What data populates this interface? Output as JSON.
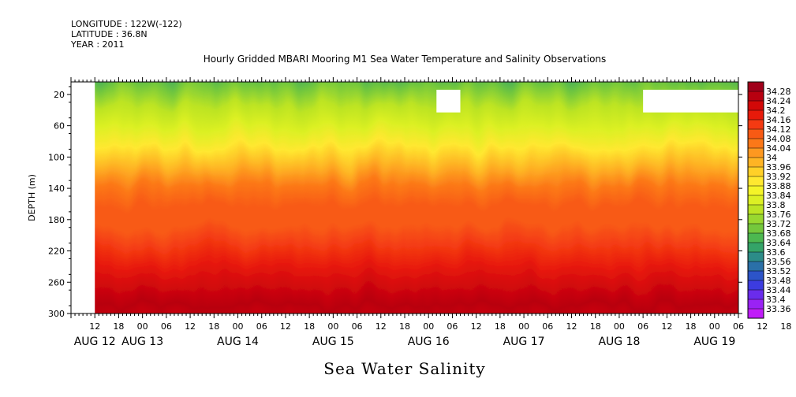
{
  "header": {
    "longitude": "LONGITUDE : 122W(-122)",
    "latitude": "LATITUDE : 36.8N",
    "year": "YEAR : 2011"
  },
  "chart_data": {
    "type": "heatmap",
    "title": "Hourly Gridded MBARI Mooring M1 Sea Water Temperature and Salinity Observations",
    "xlabel": "Sea Water Salinity",
    "ylabel": "DEPTH (m)",
    "y_ticks": [
      20,
      60,
      100,
      140,
      180,
      220,
      260,
      300
    ],
    "y_range": [
      4,
      300
    ],
    "y_inverted": true,
    "x_hour_ticks": [
      "12",
      "18",
      "00",
      "06",
      "12",
      "18",
      "00",
      "06",
      "12",
      "18",
      "00",
      "06",
      "12",
      "18",
      "00",
      "06",
      "12",
      "18",
      "00",
      "06",
      "12",
      "18",
      "00",
      "06",
      "12",
      "18",
      "00",
      "06",
      "12",
      "18",
      "00",
      "06"
    ],
    "x_day_labels": [
      "AUG 12",
      "AUG 13",
      "AUG 14",
      "AUG 15",
      "AUG 16",
      "AUG 17",
      "AUG 18",
      "AUG 19"
    ],
    "x_range_hours": [
      6,
      174
    ],
    "colorbar_labels": [
      "34.28",
      "34.24",
      "34.2",
      "34.16",
      "34.12",
      "34.08",
      "34.04",
      "34",
      "33.96",
      "33.92",
      "33.88",
      "33.84",
      "33.8",
      "33.76",
      "33.72",
      "33.68",
      "33.64",
      "33.6",
      "33.56",
      "33.52",
      "33.48",
      "33.44",
      "33.4",
      "33.36"
    ],
    "colorbar_colors": [
      "#a0001a",
      "#b80010",
      "#d20808",
      "#e81a0a",
      "#f43a12",
      "#f85a14",
      "#fc7818",
      "#fd9820",
      "#feb424",
      "#ffd028",
      "#ffe830",
      "#f4f428",
      "#dcf024",
      "#bce424",
      "#98d830",
      "#74c83c",
      "#4cb850",
      "#34a468",
      "#2c8c88",
      "#2a70a8",
      "#2c54c8",
      "#3c3ce0",
      "#6a2cec",
      "#9a22f4",
      "#c01cf8"
    ],
    "salinity_profile": [
      {
        "depth": 4,
        "value": 33.55
      },
      {
        "depth": 20,
        "value": 33.62
      },
      {
        "depth": 40,
        "value": 33.68
      },
      {
        "depth": 60,
        "value": 33.76
      },
      {
        "depth": 80,
        "value": 33.82
      },
      {
        "depth": 100,
        "value": 33.9
      },
      {
        "depth": 120,
        "value": 33.98
      },
      {
        "depth": 140,
        "value": 34.05
      },
      {
        "depth": 160,
        "value": 34.08
      },
      {
        "depth": 180,
        "value": 34.1
      },
      {
        "depth": 200,
        "value": 34.12
      },
      {
        "depth": 220,
        "value": 34.17
      },
      {
        "depth": 240,
        "value": 34.22
      },
      {
        "depth": 260,
        "value": 34.25
      },
      {
        "depth": 280,
        "value": 34.2
      },
      {
        "depth": 300,
        "value": 34.16
      }
    ],
    "missing_data": [
      {
        "start_hour": 6,
        "end_hour": 12,
        "depth_top": 4,
        "depth_bottom": 300
      },
      {
        "start_hour": 98,
        "end_hour": 104,
        "depth_top": 14,
        "depth_bottom": 43
      },
      {
        "start_hour": 150,
        "end_hour": 174,
        "depth_top": 14,
        "depth_bottom": 43
      }
    ]
  }
}
